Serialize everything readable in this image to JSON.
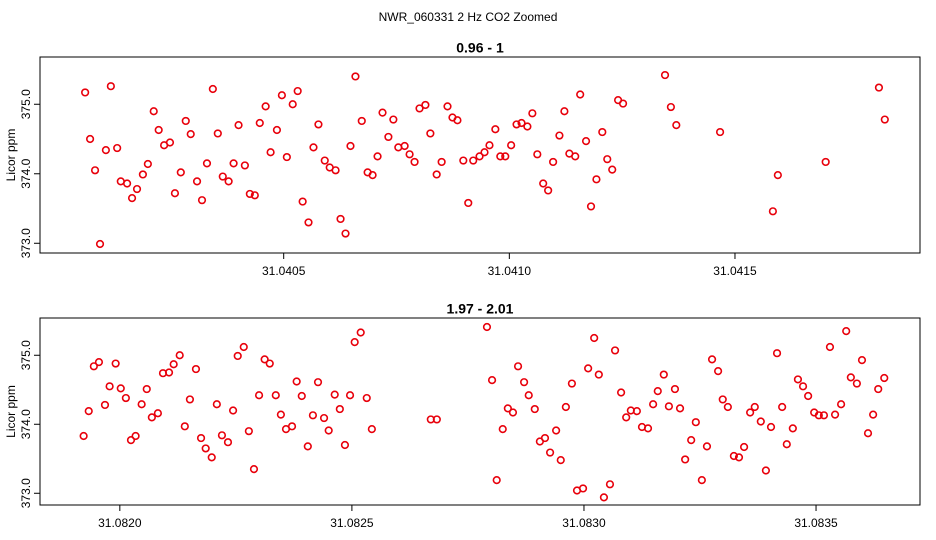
{
  "title": "NWR_060331  2 Hz CO2 Zoomed",
  "chart_data": [
    {
      "type": "scatter",
      "title": "0.96 - 1",
      "ylabel": "Licor ppm",
      "color": "#e8000b",
      "xlim": [
        31.03996,
        31.04191
      ],
      "ylim": [
        372.86,
        375.68
      ],
      "xticks": [
        31.0405,
        {
          "value": 31.041,
          "label": "31.0410"
        },
        31.0415
      ],
      "yticks": [
        {
          "value": 373,
          "label": "373.0"
        },
        {
          "value": 374,
          "label": "374.0"
        },
        {
          "value": 375,
          "label": "375.0"
        }
      ],
      "x": [
        31.04006,
        31.040071,
        31.040082,
        31.040093,
        31.040106,
        31.040117,
        31.040131,
        31.040139,
        31.040153,
        31.040164,
        31.040175,
        31.040188,
        31.040199,
        31.040212,
        31.040223,
        31.040235,
        31.040248,
        31.040259,
        31.040272,
        31.040283,
        31.040294,
        31.040308,
        31.040319,
        31.04033,
        31.040343,
        31.040354,
        31.040365,
        31.040378,
        31.040389,
        31.0404,
        31.040414,
        31.040425,
        31.040436,
        31.040447,
        31.04046,
        31.040471,
        31.040485,
        31.040496,
        31.040507,
        31.04052,
        31.040531,
        31.040542,
        31.040555,
        31.040566,
        31.040577,
        31.040591,
        31.040602,
        31.040615,
        31.040626,
        31.040637,
        31.040648,
        31.040659,
        31.040673,
        31.040686,
        31.040697,
        31.040708,
        31.040719,
        31.040732,
        31.040743,
        31.040754,
        31.040768,
        31.040779,
        31.04079,
        31.040801,
        31.040814,
        31.040825,
        31.040839,
        31.04085,
        31.040863,
        31.040874,
        31.040885,
        31.040898,
        31.040909,
        31.04092,
        31.040934,
        31.040945,
        31.040956,
        31.040969,
        31.04098,
        31.040991,
        31.041004,
        31.041016,
        31.041027,
        31.04104,
        31.041051,
        31.041062,
        31.041075,
        31.041086,
        31.041097,
        31.041111,
        31.041122,
        31.041133,
        31.041146,
        31.041157,
        31.04117,
        31.041181,
        31.041193,
        31.041206,
        31.041217,
        31.041228,
        31.041241,
        31.041252,
        31.041345,
        31.041358,
        31.04137,
        31.041467,
        31.041584,
        31.041595,
        31.041701,
        31.041819,
        31.041832
      ],
      "values": [
        375.17,
        374.5,
        374.05,
        372.99,
        374.34,
        375.26,
        374.37,
        373.89,
        373.86,
        373.65,
        373.78,
        373.99,
        374.14,
        374.9,
        374.63,
        374.41,
        374.45,
        373.72,
        374.02,
        374.76,
        374.57,
        373.89,
        373.62,
        374.15,
        375.22,
        374.58,
        373.96,
        373.89,
        374.15,
        374.7,
        374.12,
        373.71,
        373.69,
        374.73,
        374.97,
        374.31,
        374.63,
        375.13,
        374.24,
        375.0,
        375.19,
        373.6,
        373.3,
        374.38,
        374.71,
        374.19,
        374.09,
        374.05,
        373.35,
        373.14,
        374.4,
        375.4,
        374.76,
        374.02,
        373.98,
        374.25,
        374.88,
        374.53,
        374.78,
        374.38,
        374.4,
        374.28,
        374.17,
        374.94,
        374.99,
        374.58,
        373.99,
        374.17,
        374.97,
        374.81,
        374.77,
        374.19,
        373.58,
        374.19,
        374.25,
        374.31,
        374.41,
        374.64,
        374.25,
        374.25,
        374.41,
        374.71,
        374.73,
        374.68,
        374.87,
        374.28,
        373.86,
        373.76,
        374.17,
        374.55,
        374.9,
        374.29,
        374.25,
        375.14,
        374.47,
        373.53,
        373.92,
        374.6,
        374.21,
        374.06,
        375.06,
        375.01,
        375.42,
        374.96,
        374.7,
        374.6,
        373.46,
        373.98,
        374.17,
        375.24,
        374.78
      ]
    },
    {
      "type": "scatter",
      "title": "1.97 - 2.01",
      "ylabel": "Licor ppm",
      "color": "#e8000b",
      "xlim": [
        31.081828,
        31.083724
      ],
      "ylim": [
        372.83,
        375.54
      ],
      "xticks": [
        {
          "value": 31.082,
          "label": "31.0820"
        },
        31.0825,
        {
          "value": 31.083,
          "label": "31.0830"
        },
        31.0835
      ],
      "yticks": [
        {
          "value": 373,
          "label": "373.0"
        },
        {
          "value": 374,
          "label": "374.0"
        },
        {
          "value": 375,
          "label": "375.0"
        }
      ],
      "x": [
        31.081922,
        31.081933,
        31.081944,
        31.081955,
        31.081968,
        31.081978,
        31.081991,
        31.082002,
        31.082013,
        31.082024,
        31.082034,
        31.082047,
        31.082058,
        31.082069,
        31.082082,
        31.082093,
        31.082106,
        31.082116,
        31.082129,
        31.08214,
        31.082151,
        31.082164,
        31.082175,
        31.082185,
        31.082198,
        31.082209,
        31.08222,
        31.082233,
        31.082244,
        31.082254,
        31.082267,
        31.082278,
        31.082289,
        31.0823,
        31.082312,
        31.082323,
        31.082336,
        31.082347,
        31.082358,
        31.082371,
        31.082381,
        31.082392,
        31.082405,
        31.082416,
        31.082427,
        31.08244,
        31.08245,
        31.082463,
        31.082474,
        31.082485,
        31.082496,
        31.082506,
        31.082519,
        31.082532,
        31.082543,
        31.08267,
        31.082683,
        31.082791,
        31.082802,
        31.082812,
        31.082825,
        31.082836,
        31.082847,
        31.082858,
        31.082871,
        31.082881,
        31.082894,
        31.082905,
        31.082916,
        31.082927,
        31.08294,
        31.08295,
        31.082961,
        31.082974,
        31.082985,
        31.082998,
        31.083009,
        31.083022,
        31.083032,
        31.083043,
        31.083056,
        31.083067,
        31.08308,
        31.083091,
        31.083101,
        31.083114,
        31.083125,
        31.083138,
        31.083149,
        31.083159,
        31.083172,
        31.083183,
        31.083196,
        31.083207,
        31.083218,
        31.083231,
        31.083241,
        31.083254,
        31.083265,
        31.083276,
        31.083289,
        31.083299,
        31.08331,
        31.083323,
        31.083334,
        31.083345,
        31.083358,
        31.083368,
        31.083381,
        31.083392,
        31.083403,
        31.083416,
        31.083427,
        31.083437,
        31.08345,
        31.083461,
        31.083472,
        31.083483,
        31.083496,
        31.083506,
        31.083517,
        31.08353,
        31.083541,
        31.083554,
        31.083565,
        31.083575,
        31.083588,
        31.083599,
        31.083612,
        31.083623,
        31.083634,
        31.083647
      ],
      "values": [
        373.83,
        374.19,
        374.84,
        374.9,
        374.28,
        374.55,
        374.88,
        374.52,
        374.38,
        373.77,
        373.83,
        374.29,
        374.51,
        374.1,
        374.16,
        374.74,
        374.75,
        374.87,
        375.0,
        373.97,
        374.36,
        374.8,
        373.8,
        373.65,
        373.52,
        374.29,
        373.84,
        373.74,
        374.2,
        374.99,
        375.12,
        373.9,
        373.35,
        374.42,
        374.94,
        374.88,
        374.42,
        374.14,
        373.93,
        373.97,
        374.62,
        374.41,
        373.68,
        374.13,
        374.61,
        374.09,
        373.91,
        374.43,
        374.22,
        373.7,
        374.42,
        375.19,
        375.33,
        374.38,
        373.93,
        374.07,
        374.07,
        375.41,
        374.64,
        373.19,
        373.93,
        374.23,
        374.17,
        374.84,
        374.61,
        374.42,
        374.22,
        373.75,
        373.8,
        373.59,
        373.91,
        373.48,
        374.25,
        374.59,
        373.04,
        373.07,
        374.81,
        375.25,
        374.72,
        372.94,
        373.13,
        375.07,
        374.46,
        374.1,
        374.2,
        374.19,
        373.96,
        373.94,
        374.29,
        374.48,
        374.72,
        374.26,
        374.51,
        374.23,
        373.49,
        373.77,
        374.03,
        373.19,
        373.68,
        374.94,
        374.77,
        374.36,
        374.25,
        373.54,
        373.52,
        373.67,
        374.17,
        374.25,
        374.04,
        373.33,
        373.96,
        375.03,
        374.25,
        373.71,
        373.94,
        374.65,
        374.55,
        374.41,
        374.17,
        374.13,
        374.13,
        375.12,
        374.14,
        374.29,
        375.35,
        374.68,
        374.59,
        374.93,
        373.87,
        374.14,
        374.51,
        374.67
      ]
    }
  ]
}
